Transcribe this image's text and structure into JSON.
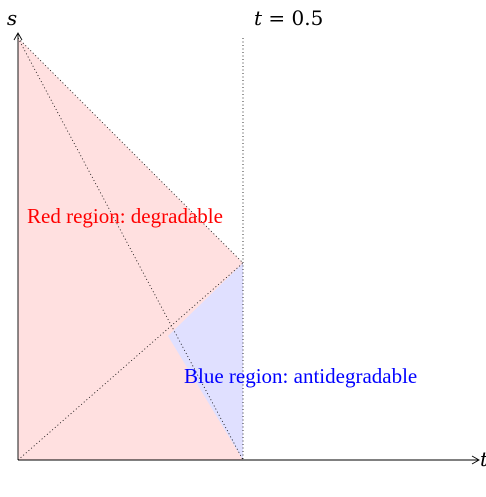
{
  "axes": {
    "x_label": "t",
    "y_label": "s"
  },
  "guide": {
    "label_var": "t",
    "label_eq": " = 0.5"
  },
  "regions": {
    "red": {
      "label": "Red region: degradable",
      "fill": "#ffe0e0",
      "text_color": "#ff0000"
    },
    "blue": {
      "label": "Blue region: antidegradable",
      "fill": "#e0e0ff",
      "text_color": "#0000ff"
    }
  },
  "colors": {
    "axis": "#000000",
    "dotted": "#000000"
  }
}
